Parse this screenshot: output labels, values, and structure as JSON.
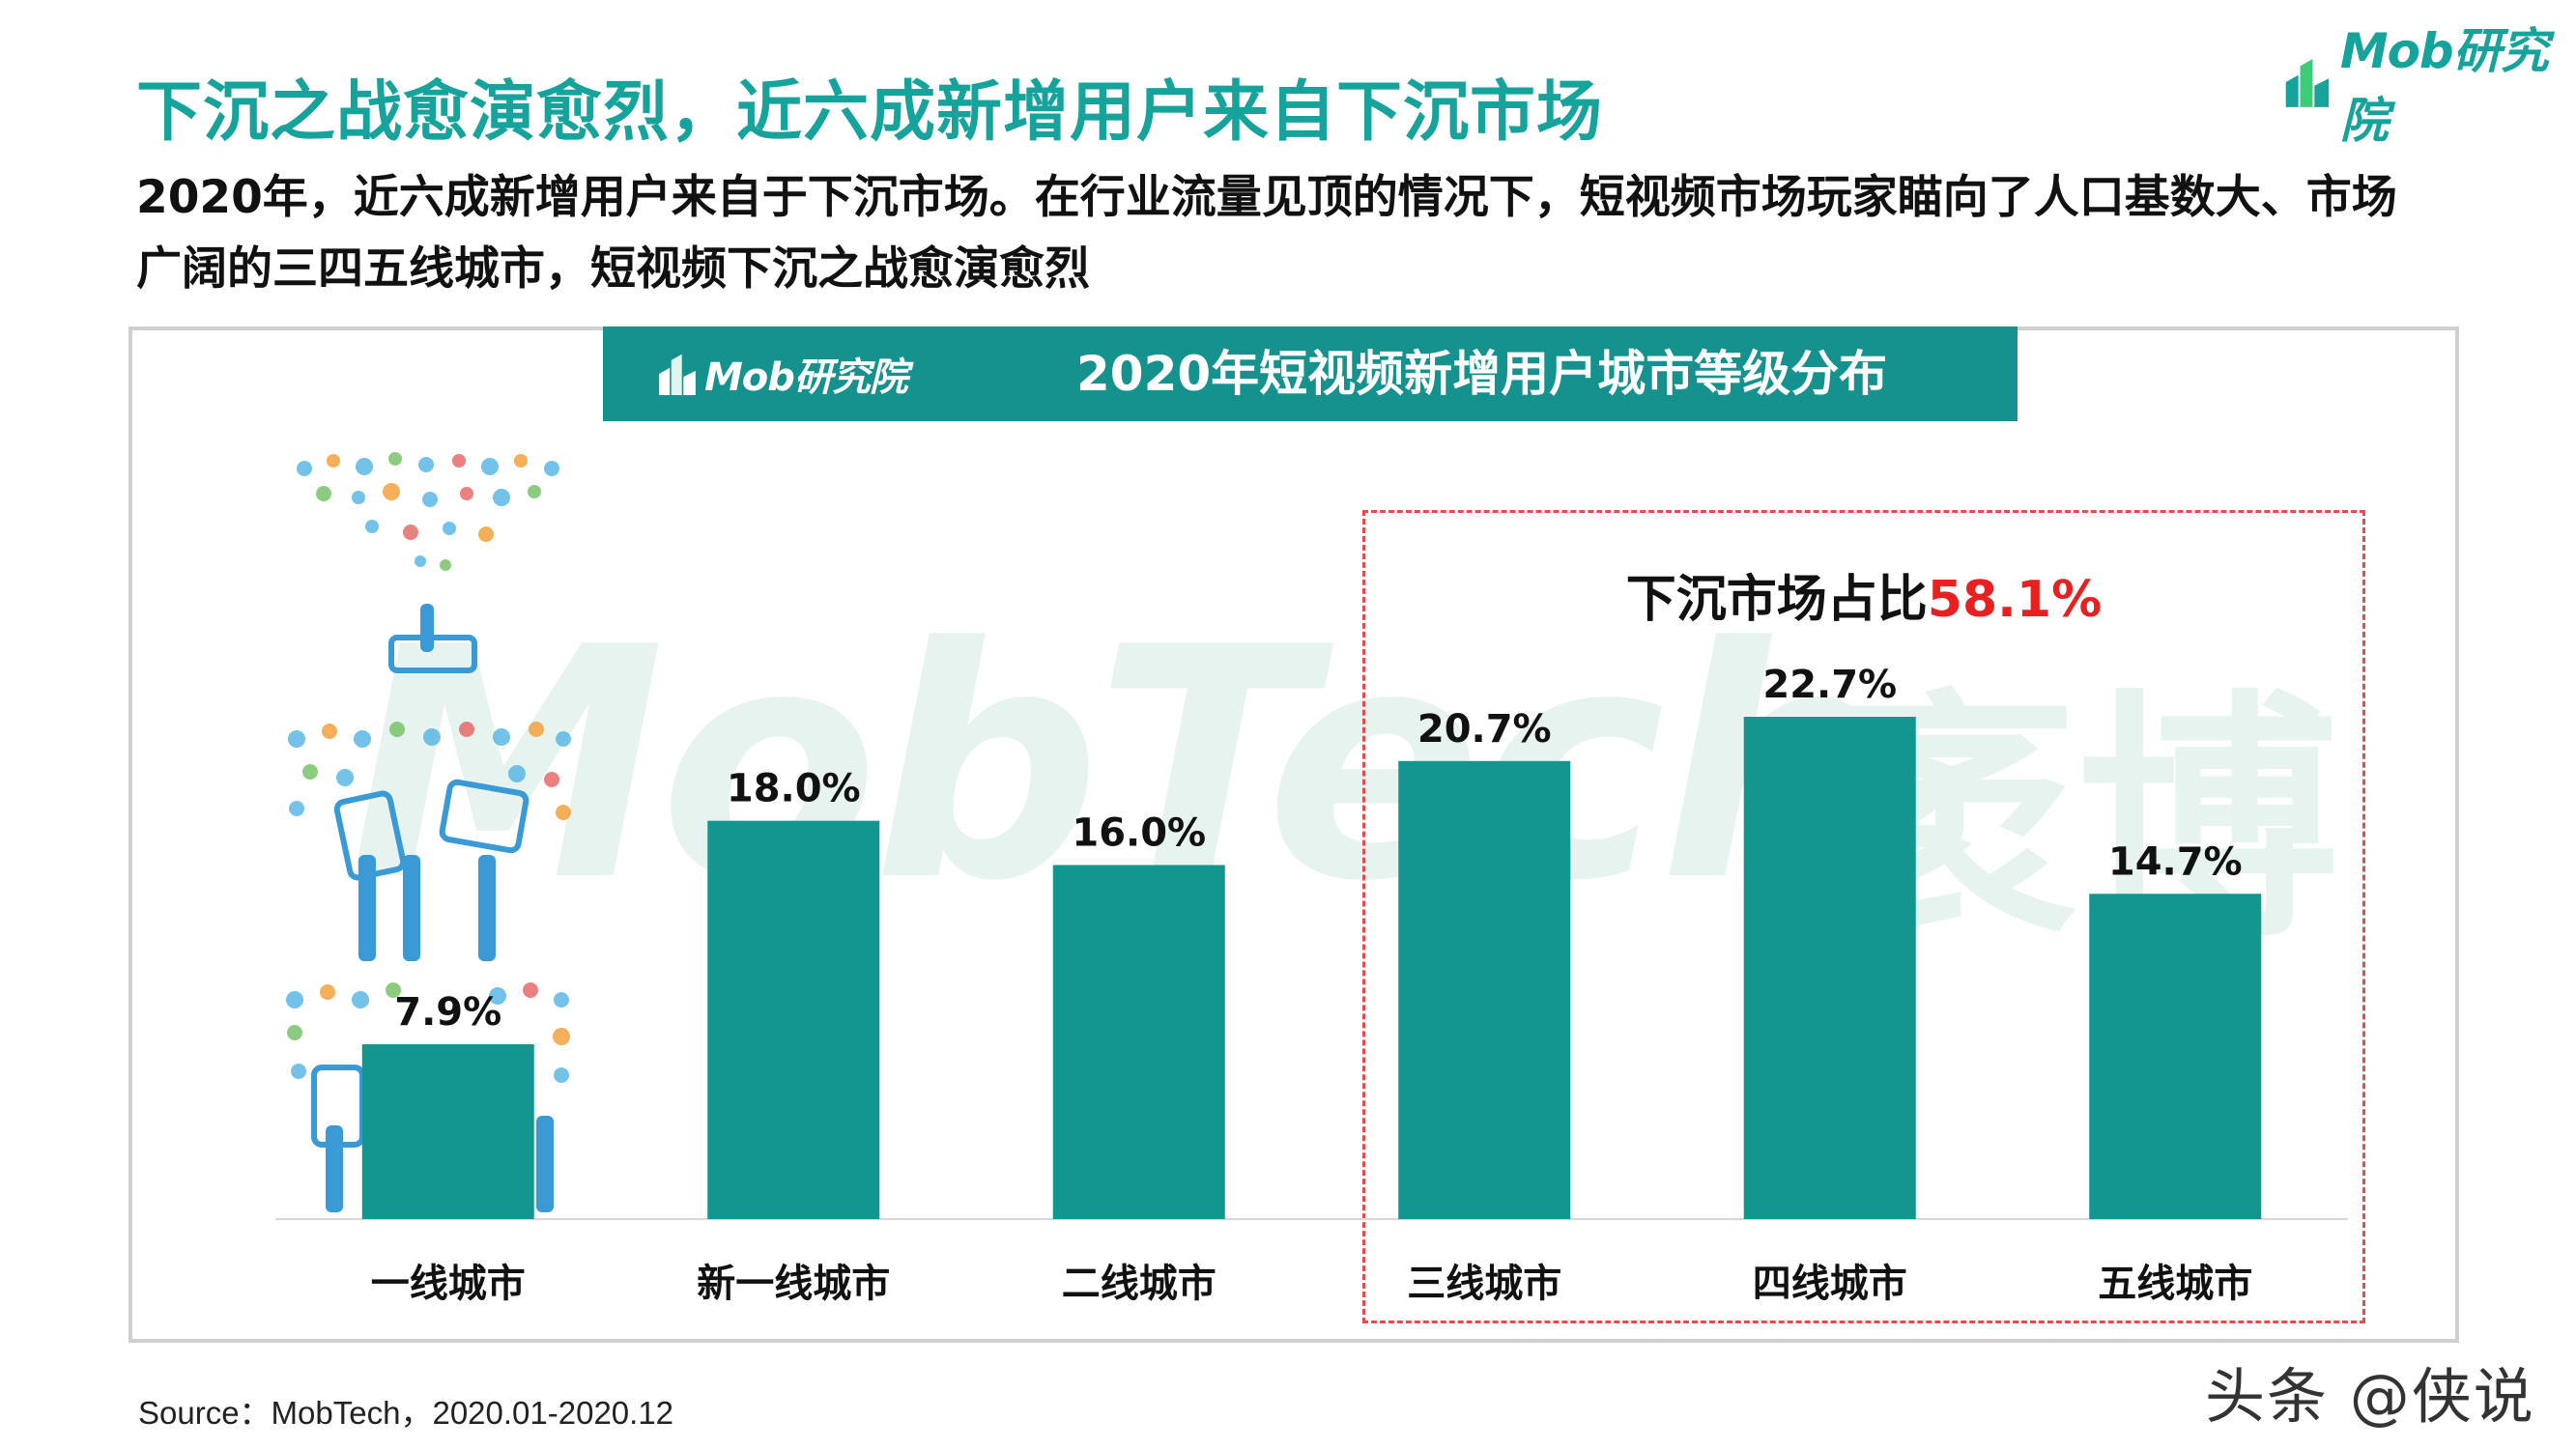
{
  "header": {
    "title": "下沉之战愈演愈烈，近六成新增用户来自下沉市场",
    "logo_text": "Mob研究院",
    "subtitle": "2020年，近六成新增用户来自于下沉市场。在行业流量见顶的情况下，短视频市场玩家瞄向了人口基数大、市场广阔的三四五线城市，短视频下沉之战愈演愈烈"
  },
  "chart_panel": {
    "logo_text": "Mob研究院",
    "watermark": "MobTech",
    "watermark_cn": "袤博",
    "callout_prefix": "下沉市场占比",
    "callout_value": "58.1%"
  },
  "chart_data": {
    "type": "bar",
    "title": "2020年短视频新增用户城市等级分布",
    "categories": [
      "一线城市",
      "新一线城市",
      "二线城市",
      "三线城市",
      "四线城市",
      "五线城市"
    ],
    "values": [
      7.9,
      18.0,
      16.0,
      20.7,
      22.7,
      14.7
    ],
    "value_labels": [
      "7.9%",
      "18.0%",
      "16.0%",
      "20.7%",
      "22.7%",
      "14.7%"
    ],
    "xlabel": "",
    "ylabel": "",
    "ylim": [
      0,
      25
    ],
    "grid": false,
    "legend": "none",
    "bar_color": "#13968f",
    "highlight_group": [
      "三线城市",
      "四线城市",
      "五线城市"
    ]
  },
  "footer": {
    "source": "Source：MobTech，2020.01-2020.12",
    "platform_watermark": "头条 @侠说"
  },
  "colors": {
    "accent": "#15a39c",
    "header_bar": "#15928e",
    "highlight": "#e8201f",
    "dashed_border": "#e84a4a"
  },
  "icons": [
    "mob-logo-icon",
    "device-hands-illustration"
  ]
}
